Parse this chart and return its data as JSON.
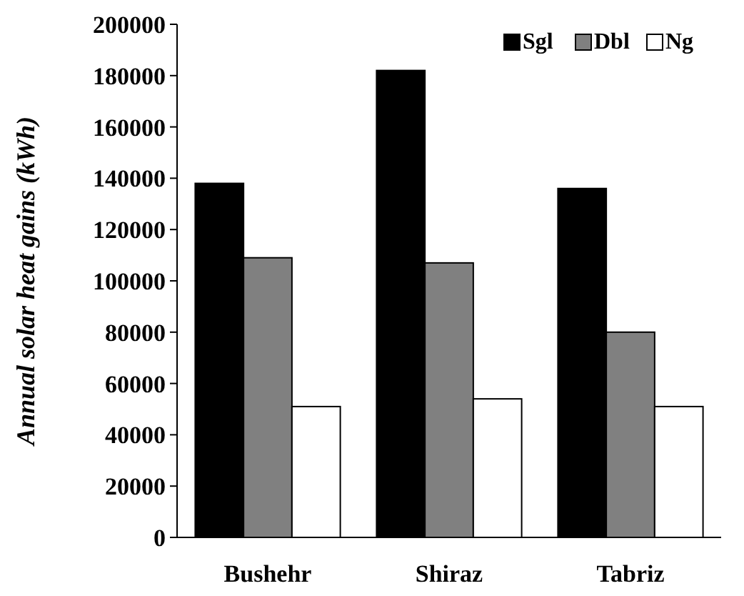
{
  "chart_data": {
    "type": "bar",
    "ylabel": "Annual solar heat gains (kWh)",
    "categories": [
      "Bushehr",
      "Shiraz",
      "Tabriz"
    ],
    "series": [
      {
        "name": "Sgl",
        "color": "#000000",
        "values": [
          138000,
          182000,
          136000
        ]
      },
      {
        "name": "Dbl",
        "color": "#808080",
        "values": [
          109000,
          107000,
          80000
        ]
      },
      {
        "name": "Ng",
        "color": "#ffffff",
        "values": [
          51000,
          54000,
          51000
        ]
      }
    ],
    "ylim": [
      0,
      200000
    ],
    "yticks": [
      0,
      20000,
      40000,
      60000,
      80000,
      100000,
      120000,
      140000,
      160000,
      180000,
      200000
    ],
    "grid": false,
    "legend": "top right"
  }
}
